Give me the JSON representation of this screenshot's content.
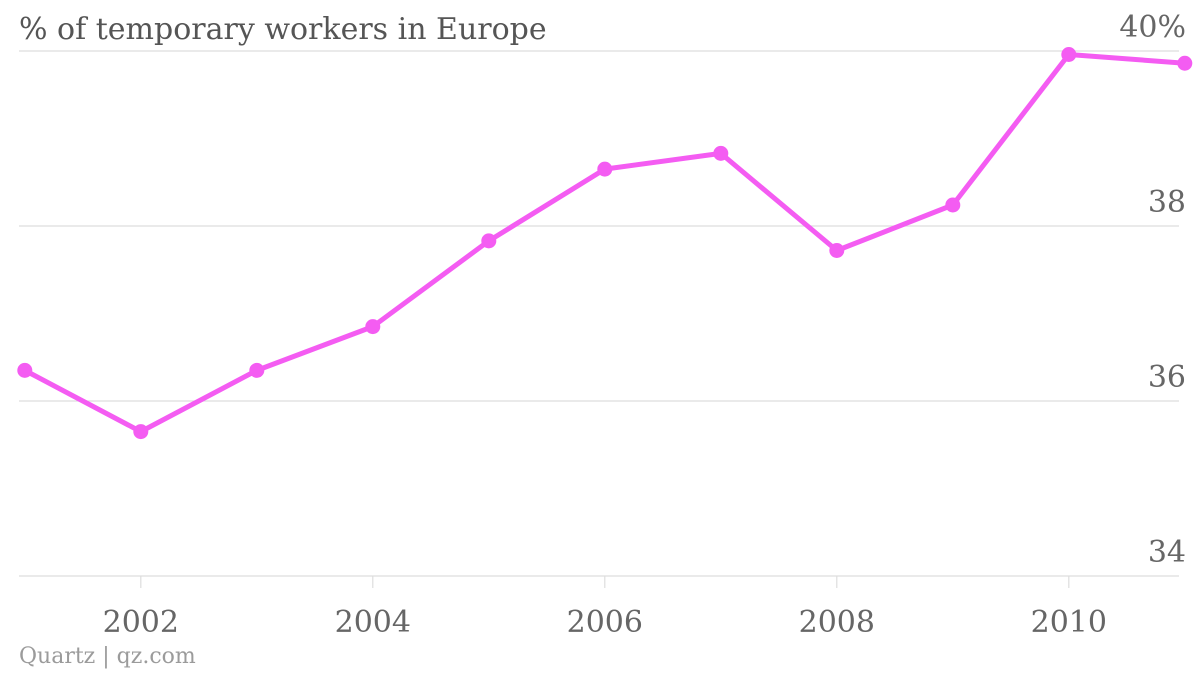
{
  "chart_data": {
    "type": "line",
    "title": "% of temporary workers in Europe",
    "xlabel": "",
    "ylabel": "",
    "x": [
      2001,
      2002,
      2003,
      2004,
      2005,
      2006,
      2007,
      2008,
      2009,
      2010,
      2011
    ],
    "series": [
      {
        "values": [
          36.35,
          35.65,
          36.35,
          36.85,
          37.83,
          38.65,
          38.83,
          37.72,
          38.24,
          39.96,
          39.86
        ]
      }
    ],
    "xticks": [
      2002,
      2004,
      2006,
      2008,
      2010
    ],
    "xtick_labels": [
      "2002",
      "2004",
      "2006",
      "2008",
      "2010"
    ],
    "yticks": [
      34,
      36,
      38,
      40
    ],
    "ytick_labels": [
      "34",
      "36",
      "38",
      "40%"
    ],
    "xlim": [
      2000.95,
      2010.95
    ],
    "ylim": [
      34,
      40
    ],
    "grid": true,
    "legend": "none",
    "colors": {
      "line": "#f45cf2",
      "grid": "#dddddd",
      "tick_text": "#666666"
    }
  },
  "source": "Quartz | qz.com"
}
